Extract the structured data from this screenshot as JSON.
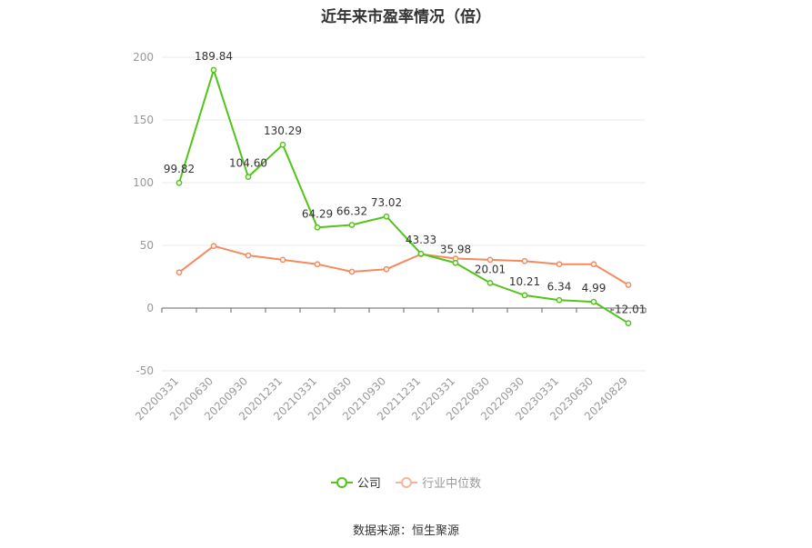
{
  "title": "近年来市盈率情况（倍）",
  "source": "数据来源：恒生聚源",
  "chart_data": {
    "type": "line",
    "categories": [
      "20200331",
      "20200630",
      "20200930",
      "20201231",
      "20210331",
      "20210630",
      "20210930",
      "20211231",
      "20220331",
      "20220630",
      "20220930",
      "20230331",
      "20230630",
      "20240829"
    ],
    "ylim": [
      -50,
      200
    ],
    "yticks": [
      "200",
      "150",
      "100",
      "50",
      "0",
      "-50"
    ],
    "grid": true,
    "legend": "bottom",
    "series": [
      {
        "name": "公司",
        "color": "#52c41a",
        "values": [
          99.82,
          189.84,
          104.6,
          130.29,
          64.29,
          66.32,
          73.02,
          43.33,
          35.98,
          20.01,
          10.21,
          6.34,
          4.99,
          -12.01
        ],
        "labels": [
          "99.82",
          "189.84",
          "104.60",
          "130.29",
          "64.29",
          "66.32",
          "73.02",
          "43.33",
          "35.98",
          "20.01",
          "10.21",
          "6.34",
          "4.99",
          "-12.01"
        ]
      },
      {
        "name": "行业中位数",
        "color": "#f5895f",
        "values": [
          28.5,
          49.5,
          42,
          38.5,
          35,
          29,
          31,
          43,
          39.5,
          38.5,
          37.5,
          35,
          35,
          18.5
        ]
      }
    ]
  }
}
